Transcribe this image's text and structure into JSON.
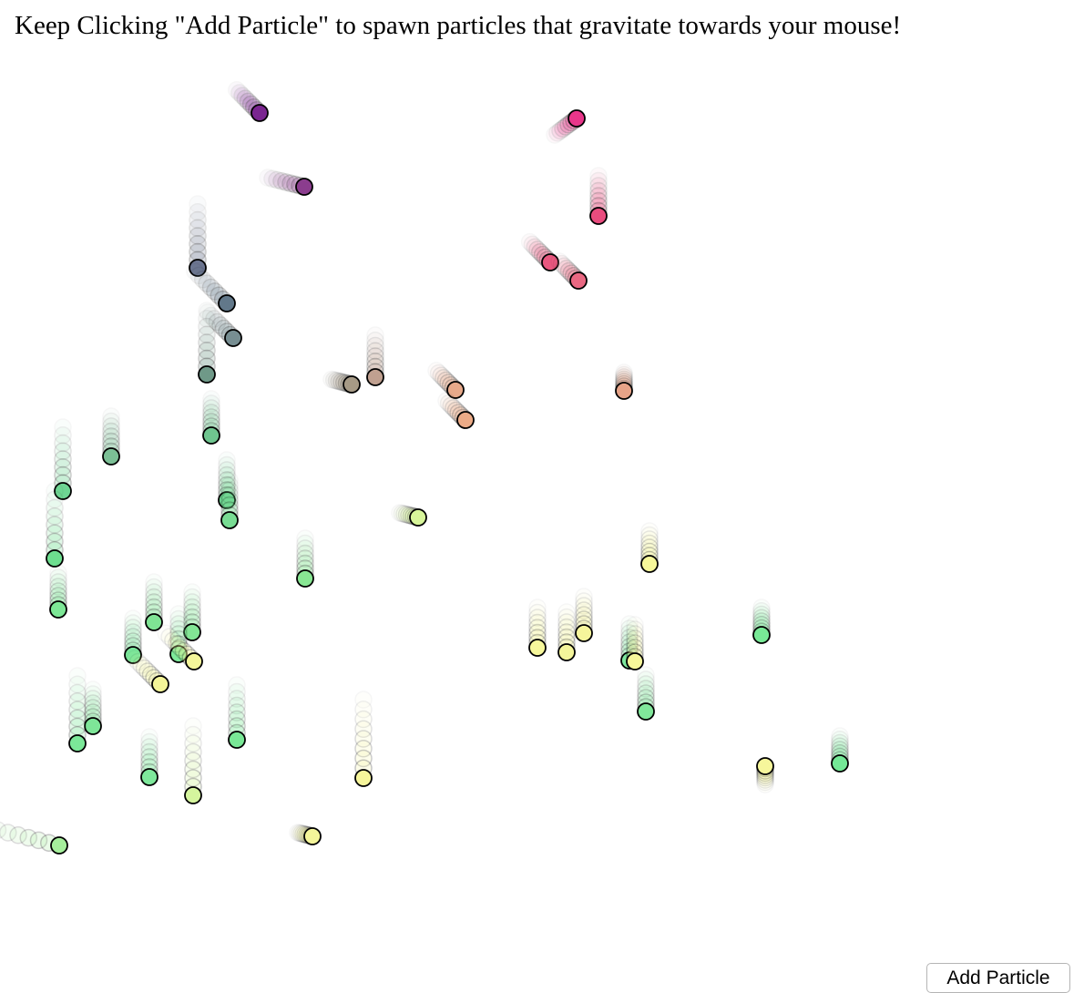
{
  "header": {
    "instructions": "Keep Clicking \"Add Particle\" to spawn particles that gravitate towards your mouse!"
  },
  "controls": {
    "add_particle_label": "Add Particle"
  },
  "particles": [
    {
      "color": "#7a2590",
      "trail": "upleft"
    },
    {
      "color": "#e8368a",
      "trail": "downleft"
    },
    {
      "color": "#8b3d8e",
      "trail": "left"
    },
    {
      "color": "#e94c7e",
      "trail": "up"
    },
    {
      "color": "#6c7590",
      "trail": "up"
    },
    {
      "color": "#e9577f",
      "trail": "upleft"
    },
    {
      "color": "#e96882",
      "trail": "upleft"
    },
    {
      "color": "#62788a",
      "trail": "upleft"
    },
    {
      "color": "#778e92",
      "trail": "upleft"
    },
    {
      "color": "#6f9988",
      "trail": "up"
    },
    {
      "color": "#a69a86",
      "trail": "left"
    },
    {
      "color": "#c0a090",
      "trail": "up"
    },
    {
      "color": "#e7a98a",
      "trail": "upleft"
    },
    {
      "color": "#e6a388",
      "trail": "up"
    },
    {
      "color": "#ecab87",
      "trail": "upleft"
    },
    {
      "color": "#7bbf95",
      "trail": "up"
    },
    {
      "color": "#6fc58f",
      "trail": "up"
    },
    {
      "color": "#6ed593",
      "trail": "up"
    },
    {
      "color": "#70d894",
      "trail": "up"
    },
    {
      "color": "#78dc93",
      "trail": "up"
    },
    {
      "color": "#d7f59a",
      "trail": "left"
    },
    {
      "color": "#f6f79a",
      "trail": "up"
    },
    {
      "color": "#6dde8f",
      "trail": "up"
    },
    {
      "color": "#88e693",
      "trail": "up"
    },
    {
      "color": "#7de796",
      "trail": "up"
    },
    {
      "color": "#7fe494",
      "trail": "up"
    },
    {
      "color": "#82e695",
      "trail": "up"
    },
    {
      "color": "#7ae69a",
      "trail": "up"
    },
    {
      "color": "#7ee99a",
      "trail": "up"
    },
    {
      "color": "#f4f69a",
      "trail": "upleft"
    },
    {
      "color": "#f4f598",
      "trail": "upleft"
    },
    {
      "color": "#f6f79b",
      "trail": "up"
    },
    {
      "color": "#f4f59a",
      "trail": "up"
    },
    {
      "color": "#f6f59b",
      "trail": "up"
    },
    {
      "color": "#7de79d",
      "trail": "up"
    },
    {
      "color": "#f6f79a",
      "trail": "up"
    },
    {
      "color": "#78e996",
      "trail": "up"
    },
    {
      "color": "#80e69a",
      "trail": "up"
    },
    {
      "color": "#7ee698",
      "trail": "up"
    },
    {
      "color": "#7be898",
      "trail": "up"
    },
    {
      "color": "#79e896",
      "trail": "up"
    },
    {
      "color": "#7ee89b",
      "trail": "up"
    },
    {
      "color": "#d5f59e",
      "trail": "up"
    },
    {
      "color": "#f6f59b",
      "trail": "up"
    },
    {
      "color": "#f6f69b",
      "trail": "down"
    },
    {
      "color": "#74e896",
      "trail": "up"
    },
    {
      "color": "#a6ef9c",
      "trail": "left"
    },
    {
      "color": "#f4f59a",
      "trail": "left"
    }
  ]
}
